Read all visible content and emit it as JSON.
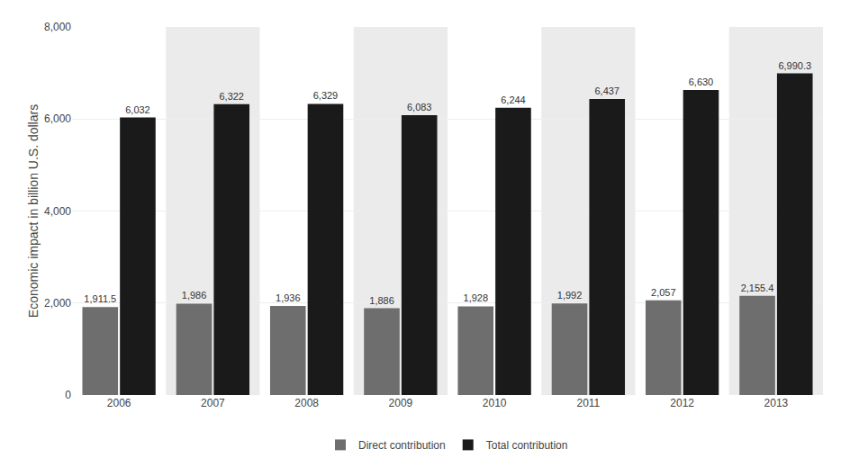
{
  "chart_data": {
    "type": "bar",
    "categories": [
      "2006",
      "2007",
      "2008",
      "2009",
      "2010",
      "2011",
      "2012",
      "2013"
    ],
    "ylabel": "Economic impact in billion U.S. dollars",
    "series": [
      {
        "name": "Direct contribution",
        "color": "#6e6e6e",
        "values": [
          1911.5,
          1986,
          1936,
          1886,
          1928,
          1992,
          2057,
          2155.4
        ],
        "value_labels": [
          "1,911.5",
          "1,986",
          "1,936",
          "1,886",
          "1,928",
          "1,992",
          "2,057",
          "2,155.4"
        ]
      },
      {
        "name": "Total contribution",
        "color": "#1a1a1a",
        "values": [
          6032,
          6322,
          6329,
          6083,
          6244,
          6437,
          6630,
          6990.3
        ],
        "value_labels": [
          "6,032",
          "6,322",
          "6,329",
          "6,083",
          "6,244",
          "6,437",
          "6,630",
          "6,990.3"
        ]
      }
    ],
    "ylim": [
      0,
      8000
    ],
    "yticks": [
      0,
      {
        "value": 2000,
        "label": "2,000"
      },
      {
        "value": 4000,
        "label": "4,000"
      },
      {
        "value": 6000,
        "label": "6,000"
      },
      {
        "value": 8000,
        "label": "8,000"
      }
    ],
    "grid": true,
    "legend": "bottom",
    "data_labels": true
  }
}
